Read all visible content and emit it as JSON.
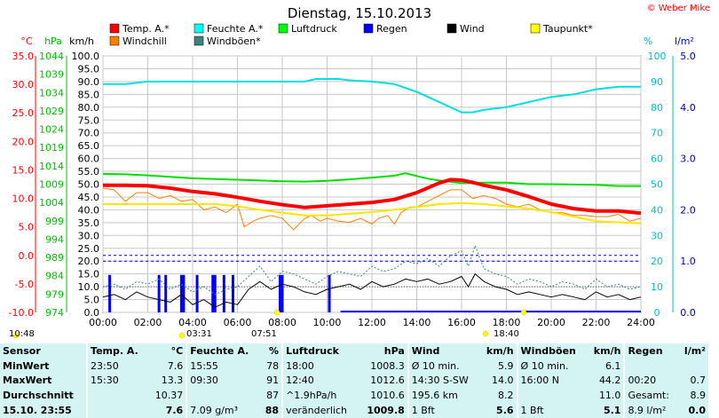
{
  "title": "Dienstag, 15.10.2013",
  "credit": "© Weber Mike",
  "chart_data": {
    "type": "line",
    "x_unit": "hour",
    "x_ticks": [
      "00:00",
      "02:00",
      "04:00",
      "06:00",
      "08:00",
      "10:00",
      "12:00",
      "14:00",
      "16:00",
      "18:00",
      "20:00",
      "22:00",
      "24:00"
    ],
    "xlim": [
      0,
      24
    ],
    "axes": {
      "temp": {
        "label": "°C",
        "ticks": [
          "35.0",
          "30.0",
          "25.0",
          "20.0",
          "15.0",
          "10.0",
          "5.0",
          "0.0",
          "-5.0",
          "-10.0"
        ],
        "range": [
          -10,
          35
        ],
        "color": "#ff0000"
      },
      "pressure": {
        "label": "hPa",
        "ticks": [
          "1044",
          "1039",
          "1034",
          "1029",
          "1024",
          "1019",
          "1014",
          "1009",
          "1004",
          "999",
          "994",
          "989",
          "984",
          "979",
          "974"
        ],
        "range": [
          974,
          1044
        ],
        "color": "#00c000"
      },
      "wind": {
        "label": "km/h",
        "ticks": [
          "100.0",
          "95.0",
          "90.0",
          "85.0",
          "80.0",
          "75.0",
          "70.0",
          "65.0",
          "60.0",
          "55.0",
          "50.0",
          "45.0",
          "40.0",
          "35.0",
          "30.0",
          "25.0",
          "20.0",
          "15.0",
          "10.0",
          "5.0",
          "0.0"
        ],
        "range": [
          0,
          100
        ],
        "color": "#000000"
      },
      "humidity": {
        "label": "%",
        "ticks": [
          "100",
          "90",
          "80",
          "70",
          "60",
          "50",
          "40",
          "30",
          "20",
          "10",
          "0"
        ],
        "range": [
          0,
          100
        ],
        "color": "#00c0c0"
      },
      "rain": {
        "label": "l/m²",
        "ticks": [
          "5.0",
          "4.0",
          "3.0",
          "2.0",
          "1.0",
          "0.0"
        ],
        "range": [
          0,
          5
        ],
        "color": "#0000c0"
      }
    },
    "legend": [
      {
        "name": "Temp. A.*",
        "color": "#ff0000"
      },
      {
        "name": "Feuchte A.*",
        "color": "#00ffff"
      },
      {
        "name": "Luftdruck",
        "color": "#00ff00"
      },
      {
        "name": "Regen",
        "color": "#0000ff"
      },
      {
        "name": "Wind",
        "color": "#000000"
      },
      {
        "name": "Taupunkt*",
        "color": "#ffff00"
      },
      {
        "name": "Windchill",
        "color": "#ff8000"
      },
      {
        "name": "Windböen*",
        "color": "#408080"
      }
    ],
    "series": [
      {
        "name": "Feuchte A.*",
        "axis": "humidity",
        "color": "#00e0e0",
        "width": 2,
        "x": [
          0,
          1,
          2,
          3,
          4,
          5,
          6,
          7,
          8,
          9,
          9.5,
          10,
          10.5,
          11,
          12,
          13,
          14,
          14.5,
          15,
          15.5,
          16,
          16.5,
          17,
          18,
          19,
          20,
          21,
          22,
          23,
          24
        ],
        "y": [
          89,
          89,
          90,
          90,
          90,
          90,
          90,
          90,
          90,
          90,
          91,
          91,
          91,
          90.5,
          90,
          89,
          86,
          84,
          82,
          80,
          78,
          78,
          79,
          80,
          82,
          84,
          85,
          87,
          88,
          88
        ]
      },
      {
        "name": "Luftdruck",
        "axis": "pressure",
        "color": "#00e000",
        "width": 2,
        "x": [
          0,
          1,
          2,
          3,
          4,
          5,
          6,
          7,
          8,
          9,
          10,
          11,
          12,
          13,
          13.5,
          14,
          14.5,
          15,
          16,
          17,
          18,
          19,
          20,
          21,
          22,
          23,
          24
        ],
        "y": [
          1011.8,
          1011.7,
          1011.4,
          1011.0,
          1010.6,
          1010.4,
          1010.2,
          1010.0,
          1009.8,
          1009.7,
          1009.9,
          1010.3,
          1010.8,
          1011.3,
          1012.0,
          1011.2,
          1010.5,
          1010.0,
          1009.3,
          1009.4,
          1009.4,
          1009.0,
          1009.0,
          1008.9,
          1008.8,
          1008.5,
          1008.5
        ]
      },
      {
        "name": "Windchill",
        "axis": "temp",
        "color": "#ff8000",
        "width": 1,
        "x": [
          0,
          0.5,
          1,
          1.5,
          2,
          2.5,
          3,
          3.5,
          4,
          4.5,
          5,
          5.5,
          6,
          6.3,
          6.7,
          7,
          7.5,
          8,
          8.5,
          9,
          9.3,
          9.7,
          10,
          10.5,
          11,
          11.5,
          12,
          12.3,
          12.7,
          13,
          13.3,
          13.7,
          14,
          14.5,
          15,
          15.5,
          16,
          16.5,
          17,
          17.5,
          18,
          18.5,
          19,
          19.5,
          20,
          20.5,
          21,
          21.5,
          22,
          22.5,
          23,
          23.5,
          24
        ],
        "y": [
          11.8,
          11.5,
          9.5,
          11.0,
          11.0,
          10.0,
          10.5,
          9.5,
          9.8,
          8.0,
          8.5,
          7.5,
          9.0,
          5.0,
          6.0,
          6.5,
          7.0,
          6.5,
          4.5,
          6.5,
          7.0,
          6.0,
          6.5,
          6.0,
          5.8,
          6.5,
          5.5,
          6.5,
          7.0,
          5.5,
          7.5,
          8.5,
          8.5,
          9.5,
          10.5,
          11.5,
          11.5,
          10.0,
          10.5,
          10.0,
          9.0,
          8.5,
          9.0,
          8.0,
          7.5,
          7.5,
          7.0,
          7.0,
          6.8,
          6.8,
          7.2,
          6.0,
          6.5
        ]
      },
      {
        "name": "Taupunkt*",
        "axis": "temp",
        "color": "#ffe600",
        "width": 2,
        "x": [
          0,
          1,
          2,
          3,
          4,
          5,
          6,
          7,
          8,
          9,
          10,
          11,
          12,
          13,
          14,
          15,
          16,
          17,
          18,
          19,
          20,
          21,
          22,
          23,
          24
        ],
        "y": [
          9.0,
          9.0,
          9.0,
          9.0,
          9.0,
          9.0,
          8.6,
          8.0,
          7.5,
          7.0,
          7.0,
          7.3,
          7.6,
          8.0,
          8.5,
          9.0,
          9.2,
          9.0,
          8.6,
          8.2,
          7.6,
          6.8,
          6.0,
          5.8,
          5.6
        ]
      },
      {
        "name": "Temp. A.*",
        "axis": "temp",
        "color": "#ff0000",
        "width": 4,
        "x": [
          0,
          1,
          2,
          3,
          4,
          5,
          6,
          7,
          8,
          9,
          10,
          11,
          12,
          13,
          14,
          15,
          15.5,
          16,
          16.5,
          17,
          18,
          19,
          20,
          21,
          22,
          23,
          24
        ],
        "y": [
          12.3,
          12.3,
          12.2,
          11.8,
          11.2,
          10.8,
          10.2,
          9.5,
          8.9,
          8.4,
          8.7,
          9.0,
          9.3,
          9.8,
          11.0,
          12.7,
          13.3,
          13.2,
          12.8,
          12.3,
          11.5,
          10.3,
          9.0,
          8.2,
          7.8,
          7.8,
          7.4
        ]
      },
      {
        "name": "Windböen*",
        "axis": "wind",
        "color": "#408080",
        "width": 1,
        "dash": "2,2",
        "x": [
          0,
          0.5,
          1,
          1.5,
          2,
          2.5,
          3,
          3.5,
          4,
          4.5,
          5,
          5.5,
          6,
          6.5,
          7,
          7.5,
          8,
          8.5,
          9,
          9.5,
          10,
          10.5,
          11,
          11.5,
          12,
          12.5,
          13,
          13.5,
          14,
          14.5,
          15,
          15.5,
          16,
          16.3,
          16.6,
          17,
          17.5,
          18,
          18.5,
          19,
          19.5,
          20,
          20.5,
          21,
          21.5,
          22,
          22.5,
          23,
          23.5,
          24
        ],
        "y": [
          10,
          11,
          9,
          12,
          11,
          13,
          9,
          11,
          8,
          10,
          7,
          9,
          10,
          14,
          18,
          12,
          16,
          15,
          13,
          11,
          14,
          16,
          15,
          14,
          18,
          16,
          17,
          20,
          19,
          21,
          18,
          22,
          24,
          18,
          26,
          17,
          15,
          14,
          11,
          13,
          12,
          10,
          12,
          11,
          9,
          13,
          10,
          11,
          9,
          10
        ]
      },
      {
        "name": "Wind",
        "axis": "wind",
        "color": "#000000",
        "width": 1,
        "x": [
          0,
          0.5,
          1,
          1.5,
          2,
          2.5,
          3,
          3.5,
          4,
          4.5,
          5,
          5.5,
          6,
          6.5,
          7,
          7.5,
          8,
          8.5,
          9,
          9.5,
          10,
          10.5,
          11,
          11.5,
          12,
          12.5,
          13,
          13.5,
          14,
          14.5,
          15,
          15.5,
          16,
          16.3,
          16.6,
          17,
          17.5,
          18,
          18.5,
          19,
          19.5,
          20,
          20.5,
          21,
          21.5,
          22,
          22.5,
          23,
          23.5,
          24
        ],
        "y": [
          6,
          7,
          5,
          8,
          6,
          5,
          4,
          7,
          3,
          5,
          2,
          4,
          3,
          9,
          12,
          9,
          11,
          10,
          8,
          7,
          9,
          10,
          11,
          9,
          12,
          10,
          11,
          13,
          12,
          13,
          11,
          12,
          14,
          10,
          15,
          12,
          10,
          9,
          7,
          8,
          7,
          6,
          7,
          6,
          5,
          8,
          6,
          7,
          5,
          6
        ]
      }
    ],
    "rain_bars": [
      0.3,
      2.5,
      2.8,
      3.5,
      3.6,
      4.2,
      4.9,
      5.0,
      5.4,
      5.8,
      7.9,
      8.0,
      10.1
    ],
    "rain_track": {
      "from": 10.6,
      "to": 24,
      "level": 0.02
    },
    "dashed_ref_temp": 0.0,
    "dashed_ref_rain": 1.0,
    "dotted_ref_wind": 10.0
  },
  "time_labels": {
    "left": "10:48",
    "sunrise": "03:31",
    "mid": "07:51",
    "sunset": "18:40"
  },
  "table": {
    "header": [
      "Sensor",
      "Temp. A.",
      "°C",
      "Feuchte A.",
      "%",
      "Luftdruck",
      "hPa",
      "Wind",
      "km/h",
      "Windböen",
      "km/h",
      "Regen",
      "l/m²"
    ],
    "rows": [
      [
        "MinWert",
        "23:50",
        "7.6",
        "15:55",
        "78",
        "18:00",
        "1008.3",
        "Ø 10 min.",
        "5.9",
        "Ø 10 min.",
        "6.1",
        "",
        ""
      ],
      [
        "MaxWert",
        "15:30",
        "13.3",
        "09:30",
        "91",
        "12:40",
        "1012.6",
        "14:30  S-SW",
        "14.0",
        "16:00  N",
        "44.2",
        "00:20",
        "0.7"
      ],
      [
        "Durchschnitt",
        "",
        "10.37",
        "",
        "87",
        "^1.9hPa/h",
        "1010.6",
        "195.6 km",
        "8.2",
        "",
        "11.0",
        "Gesamt:",
        "8.9"
      ],
      [
        "15.10.  23:55",
        "",
        "7.6",
        "7.09 g/m³",
        "88",
        "veränderlich",
        "1009.8",
        "1 Bft",
        "5.6",
        "1 Bft",
        "5.1",
        "8.9 l/m²",
        "0.0"
      ]
    ]
  }
}
